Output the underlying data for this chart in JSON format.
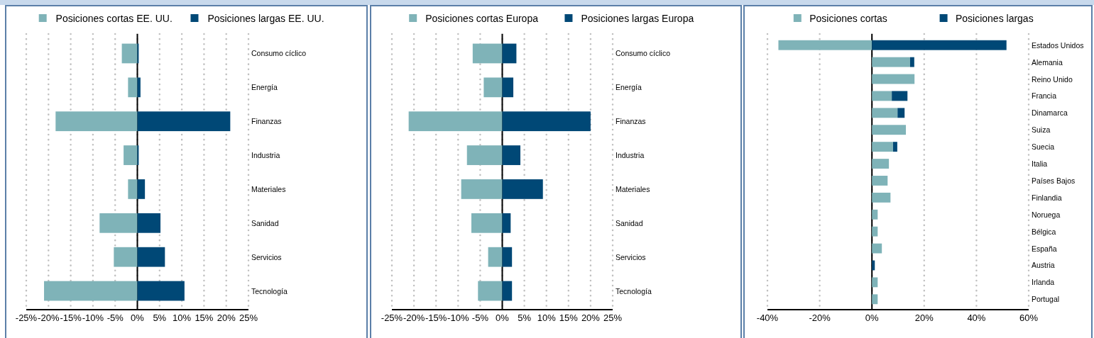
{
  "chart_data": [
    {
      "type": "bar",
      "orientation": "horizontal",
      "stacked": true,
      "grid": "x",
      "categories": [
        "Consumo cíclico",
        "Energía",
        "Finanzas",
        "Industria",
        "Materiales",
        "Sanidad",
        "Servicios",
        "Tecnología"
      ],
      "series": [
        {
          "name": "Posiciones cortas EE. UU.",
          "color": "#7fb3b8",
          "values": [
            -3.5,
            -2.1,
            -18.4,
            -3.1,
            -2.1,
            -8.5,
            -5.3,
            -21
          ]
        },
        {
          "name": "Posiciones largas EE. UU.",
          "color": "#004876",
          "values": [
            0.3,
            0.7,
            20.9,
            0.3,
            1.7,
            5.2,
            6.2,
            10.6
          ]
        }
      ],
      "xlim": [
        -25,
        25
      ],
      "xticks": [
        {
          "value": -25,
          "label": "-25%"
        },
        {
          "value": -20,
          "label": "-20%"
        },
        {
          "value": -15,
          "label": "-15%"
        },
        {
          "value": -10,
          "label": "-10%"
        },
        {
          "value": -5,
          "label": "-5%"
        },
        {
          "value": 0,
          "label": "0%"
        },
        {
          "value": 5,
          "label": "5%"
        },
        {
          "value": 10,
          "label": "10%"
        },
        {
          "value": 15,
          "label": "15%"
        },
        {
          "value": 20,
          "label": "20%"
        },
        {
          "value": 25,
          "label": "25%"
        }
      ],
      "legend": "top"
    },
    {
      "type": "bar",
      "orientation": "horizontal",
      "stacked": true,
      "grid": "x",
      "categories": [
        "Consumo cíclico",
        "Energía",
        "Finanzas",
        "Industria",
        "Materiales",
        "Sanidad",
        "Servicios",
        "Tecnología"
      ],
      "series": [
        {
          "name": "Posiciones cortas Europa",
          "color": "#7fb3b8",
          "values": [
            -6.7,
            -4.2,
            -21.2,
            -8,
            -9.3,
            -7,
            -3.2,
            -5.5
          ]
        },
        {
          "name": "Posiciones largas Europa",
          "color": "#004876",
          "values": [
            3.2,
            2.5,
            20,
            4.1,
            9.2,
            1.9,
            2.2,
            2.2
          ]
        }
      ],
      "xlim": [
        -25,
        25
      ],
      "xticks": [
        {
          "value": -25,
          "label": "-25%"
        },
        {
          "value": -20,
          "label": "-20%"
        },
        {
          "value": -15,
          "label": "-15%"
        },
        {
          "value": -10,
          "label": "-10%"
        },
        {
          "value": -5,
          "label": "-5%"
        },
        {
          "value": 0,
          "label": "0%"
        },
        {
          "value": 5,
          "label": "5%"
        },
        {
          "value": 10,
          "label": "10%"
        },
        {
          "value": 15,
          "label": "15%"
        },
        {
          "value": 20,
          "label": "20%"
        },
        {
          "value": 25,
          "label": "25%"
        }
      ],
      "legend": "top"
    },
    {
      "type": "bar",
      "orientation": "horizontal",
      "stacked": true,
      "grid": "x",
      "categories": [
        "Estados Unidos",
        "Alemania",
        "Reino Unido",
        "Francia",
        "Dinamarca",
        "Suiza",
        "Suecia",
        "Italia",
        "Países Bajos",
        "Finlandia",
        "Noruega",
        "Bélgica",
        "España",
        "Austria",
        "Irlanda",
        "Portugal"
      ],
      "series": [
        {
          "name": "Posiciones cortas",
          "color": "#7fb3b8",
          "values": [
            -35.8,
            14.6,
            16.3,
            7.6,
            9.8,
            13,
            8.1,
            6.5,
            6,
            7.1,
            2.2,
            2.2,
            3.8,
            0,
            2.2,
            2.2
          ]
        },
        {
          "name": "Posiciones largas",
          "color": "#004876",
          "values": [
            51.5,
            1.6,
            0,
            6,
            2.7,
            0,
            1.6,
            0,
            0,
            0,
            0,
            0,
            0,
            1.1,
            0,
            0
          ]
        }
      ],
      "legend": "top",
      "xlim": [
        -40,
        60
      ],
      "xticks": [
        {
          "value": -40,
          "label": "-40%"
        },
        {
          "value": -20,
          "label": "-20%"
        },
        {
          "value": 0,
          "label": "0%"
        },
        {
          "value": 20,
          "label": "20%"
        },
        {
          "value": 40,
          "label": "40%"
        },
        {
          "value": 60,
          "label": "60%"
        }
      ]
    }
  ]
}
